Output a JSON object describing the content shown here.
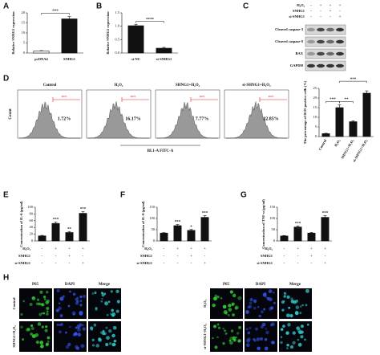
{
  "panel_letters": [
    "A",
    "B",
    "C",
    "D",
    "E",
    "F",
    "G",
    "H"
  ],
  "chart_data": [
    {
      "type": "bar",
      "y_label": "Relative SNHG1 expression",
      "categories": [
        "pcDNA4",
        "SNHG1"
      ],
      "values": [
        1,
        17
      ],
      "errors": [
        0.2,
        1.2
      ],
      "colors": [
        "#ffffff",
        "#111111"
      ],
      "ylim": [
        0,
        20
      ],
      "yticks": [
        0,
        5,
        10,
        15,
        20
      ],
      "brackets": [
        "***"
      ]
    },
    {
      "type": "bar",
      "y_label": "Relative SNHG1 expression",
      "categories": [
        "si-NC",
        "si-SNHG1"
      ],
      "values": [
        1.02,
        0.18
      ],
      "errors": [
        0.04,
        0.03
      ],
      "colors": [
        "#111111",
        "#111111"
      ],
      "ylim": [
        0,
        1.5
      ],
      "yticks": [
        {
          "value": 0,
          "label": "0.0"
        },
        0.5,
        {
          "value": 1,
          "label": "1.0"
        },
        1.5
      ],
      "brackets": [
        "****"
      ]
    },
    {
      "type": "bar",
      "y_label": "The percentage of ROS positive cells (%)",
      "categories": [
        "Control",
        "H₂O₂",
        "SHNG1+H₂O₂",
        "si-SHNG1+H₂O₂"
      ],
      "values": [
        1.5,
        15,
        7.7,
        22.5
      ],
      "errors": [
        0.2,
        1.5,
        0.4,
        1.2
      ],
      "colors": [
        "#111111",
        "#111111",
        "#111111",
        "#111111"
      ],
      "ylim": [
        0,
        25
      ],
      "yticks": [
        0,
        5,
        10,
        15,
        20,
        25
      ],
      "brackets": [
        "***",
        "**",
        "***"
      ]
    },
    {
      "type": "bar",
      "y_label": "Concentration of IL-6 (pg/ml)",
      "values": [
        15,
        52,
        25,
        82
      ],
      "errors": [
        1.5,
        4,
        3,
        5
      ],
      "colors": [
        "#111111",
        "#111111",
        "#111111",
        "#111111"
      ],
      "ylim": [
        0,
        100
      ],
      "yticks": [
        0,
        20,
        40,
        60,
        80,
        100
      ],
      "bar_labels": [
        null,
        "***",
        "**",
        "***"
      ],
      "conditions": {
        "rows": [
          "H₂O₂",
          "SNHG1",
          "si-SNHG1"
        ],
        "signs": [
          [
            "-",
            "+",
            "+",
            "+"
          ],
          [
            "-",
            "-",
            "+",
            "-"
          ],
          [
            "-",
            "-",
            "-",
            "+"
          ]
        ]
      }
    },
    {
      "type": "bar",
      "y_label": "Concentration of IL-8 (pg/ml)",
      "values": [
        35,
        68,
        47,
        105
      ],
      "errors": [
        2,
        5,
        4,
        8
      ],
      "colors": [
        "#111111",
        "#111111",
        "#111111",
        "#111111"
      ],
      "ylim": [
        0,
        150
      ],
      "yticks": [
        0,
        50,
        100,
        150
      ],
      "bar_labels": [
        null,
        "***",
        "*",
        "***"
      ],
      "conditions": {
        "rows": [
          "H₂O₂",
          "SNHG1",
          "si-SNHG1"
        ],
        "signs": [
          [
            "-",
            "+",
            "+",
            "+"
          ],
          [
            "-",
            "-",
            "+",
            "-"
          ],
          [
            "-",
            "-",
            "-",
            "+"
          ]
        ]
      }
    },
    {
      "type": "bar",
      "y_label": "Concentration of TNF-α (pg/ml)",
      "values": [
        22,
        62,
        35,
        105
      ],
      "errors": [
        2,
        5,
        3,
        8
      ],
      "colors": [
        "#111111",
        "#111111",
        "#111111",
        "#111111"
      ],
      "ylim": [
        0,
        150
      ],
      "yticks": [
        0,
        50,
        100,
        150
      ],
      "bar_labels": [
        null,
        "***",
        null,
        "***"
      ],
      "conditions": {
        "rows": [
          "H₂O₂",
          "SNHG1",
          "si-SNHG1"
        ],
        "signs": [
          [
            "-",
            "+",
            "+",
            "+"
          ],
          [
            "-",
            "-",
            "+",
            "-"
          ],
          [
            "-",
            "-",
            "-",
            "+"
          ]
        ]
      }
    }
  ],
  "blot": {
    "conditions": {
      "rows": [
        "H₂O₂",
        "SNHG1",
        "si-SNHG1"
      ],
      "signs": [
        [
          "-",
          "+",
          "+",
          "+"
        ],
        [
          "-",
          "-",
          "+",
          "-"
        ],
        [
          "-",
          "-",
          "-",
          "+"
        ]
      ]
    },
    "bands": [
      "Cleaved caspase-3",
      "Cleaved caspase-9",
      "BAX",
      "GAPDH"
    ]
  },
  "flow": {
    "y_label": "Count",
    "x_label": "BL1-A FITC-A",
    "gate_label": "ROS",
    "panels": [
      {
        "title": "Control",
        "percent": "1.72%"
      },
      {
        "title": "H₂O₂",
        "percent": "16.17%"
      },
      {
        "title": "SHNG1+H₂O₂",
        "percent": "7.77%"
      },
      {
        "title": "si-SHNG1+H₂O₂",
        "percent": "22.85%"
      }
    ]
  },
  "micrographs": {
    "columns": [
      "P65",
      "DAPI",
      "Merge"
    ],
    "rows_left": [
      "Control",
      "SHNG1+H₂O₂"
    ],
    "rows_right": [
      "H₂O₂",
      "si-SHNG1+H₂O₂"
    ]
  }
}
